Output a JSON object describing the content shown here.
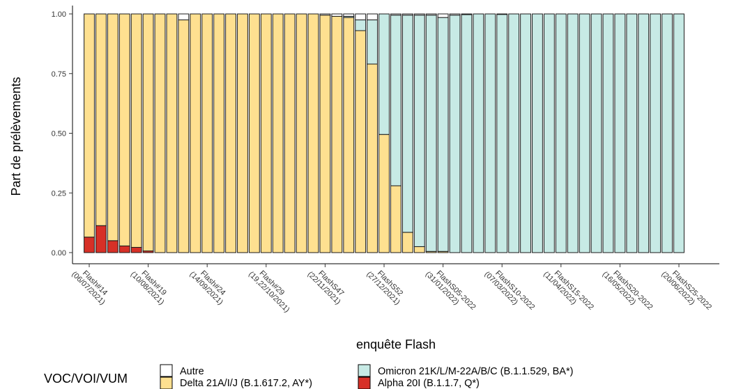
{
  "chart_data": {
    "type": "bar",
    "stacked": true,
    "xlabel": "enquête Flash",
    "ylabel": "Part de prélèvements",
    "ylim": [
      0,
      1
    ],
    "yticks": [
      "0.00",
      "0.25",
      "0.50",
      "0.75",
      "1.00"
    ],
    "grid": false,
    "legend_position": "bottom",
    "legend_title": "VOC/VOI/VUM",
    "xtick_labels": [
      {
        "index": 0,
        "lines": [
          "Flash#14",
          "(06/07/2021)"
        ]
      },
      {
        "index": 5,
        "lines": [
          "Flash#19",
          "(10/08/2021)"
        ]
      },
      {
        "index": 10,
        "lines": [
          "Flash#24",
          "(14/09/2021)"
        ]
      },
      {
        "index": 15,
        "lines": [
          "Flash#29",
          "(19,22/10/2021)"
        ]
      },
      {
        "index": 20,
        "lines": [
          "FlashS47",
          "(22/11/2021)"
        ]
      },
      {
        "index": 25,
        "lines": [
          "FlashS52",
          "(27/12/2021)"
        ]
      },
      {
        "index": 30,
        "lines": [
          "FlashS05-2022",
          "(31/01/2022)"
        ]
      },
      {
        "index": 35,
        "lines": [
          "FlashS10-2022",
          "(07/03/2022)"
        ]
      },
      {
        "index": 40,
        "lines": [
          "FlashS15-2022",
          "(11/04/2022)"
        ]
      },
      {
        "index": 45,
        "lines": [
          "FlashS20-2022",
          "(16/05/2022)"
        ]
      },
      {
        "index": 50,
        "lines": [
          "FlashS25-2022",
          "(20/06/2022)"
        ]
      }
    ],
    "series": [
      {
        "name": "Alpha 20I (B.1.1.7, Q*)",
        "color": "#d73027",
        "values": [
          0.065,
          0.113,
          0.05,
          0.028,
          0.022,
          0.007,
          0,
          0,
          0,
          0,
          0,
          0,
          0,
          0,
          0,
          0,
          0,
          0,
          0,
          0,
          0,
          0,
          0,
          0,
          0,
          0,
          0,
          0,
          0,
          0,
          0,
          0,
          0,
          0,
          0,
          0,
          0,
          0,
          0,
          0,
          0,
          0,
          0,
          0,
          0,
          0,
          0,
          0,
          0,
          0,
          0
        ]
      },
      {
        "name": "Delta 21A/I/J (B.1.617.2, AY*)",
        "color": "#fee090",
        "values": [
          0.935,
          0.887,
          0.95,
          0.972,
          0.978,
          0.993,
          1,
          1,
          0.975,
          1,
          1,
          1,
          1,
          1,
          1,
          1,
          1,
          1,
          1,
          1,
          0.995,
          0.99,
          0.985,
          0.93,
          0.79,
          0.495,
          0.28,
          0.085,
          0.025,
          0.005,
          0.005,
          0,
          0,
          0,
          0,
          0,
          0,
          0,
          0,
          0,
          0,
          0,
          0,
          0,
          0,
          0,
          0,
          0,
          0,
          0,
          0
        ]
      },
      {
        "name": "Omicron 21K/L/M-22A/B/C (B.1.1.529, BA*)",
        "color": "#c7eae5",
        "values": [
          0,
          0,
          0,
          0,
          0,
          0,
          0,
          0,
          0,
          0,
          0,
          0,
          0,
          0,
          0,
          0,
          0,
          0,
          0,
          0,
          0,
          0,
          0.005,
          0.045,
          0.185,
          0.505,
          0.715,
          0.91,
          0.97,
          0.99,
          0.98,
          0.995,
          0.997,
          1,
          1,
          0.998,
          1,
          1,
          1,
          1,
          1,
          1,
          1,
          1,
          1,
          1,
          1,
          1,
          1,
          1,
          1
        ]
      },
      {
        "name": "Autre",
        "color": "#ffffff",
        "values": [
          0,
          0,
          0,
          0,
          0,
          0,
          0,
          0,
          0.025,
          0,
          0,
          0,
          0,
          0,
          0,
          0,
          0,
          0,
          0,
          0,
          0.005,
          0.01,
          0.01,
          0.025,
          0.025,
          0,
          0.005,
          0.005,
          0.005,
          0.005,
          0.015,
          0.005,
          0.003,
          0,
          0,
          0.002,
          0,
          0,
          0,
          0,
          0,
          0,
          0,
          0,
          0,
          0,
          0,
          0,
          0,
          0,
          0
        ]
      }
    ]
  },
  "legend": {
    "title": "VOC/VOI/VUM",
    "items": [
      {
        "label": "Autre",
        "color": "#ffffff"
      },
      {
        "label": "Delta 21A/I/J (B.1.617.2, AY*)",
        "color": "#fee090"
      },
      {
        "label": "Omicron 21K/L/M-22A/B/C (B.1.1.529, BA*)",
        "color": "#c7eae5"
      },
      {
        "label": "Alpha 20I (B.1.1.7, Q*)",
        "color": "#d73027"
      }
    ]
  }
}
